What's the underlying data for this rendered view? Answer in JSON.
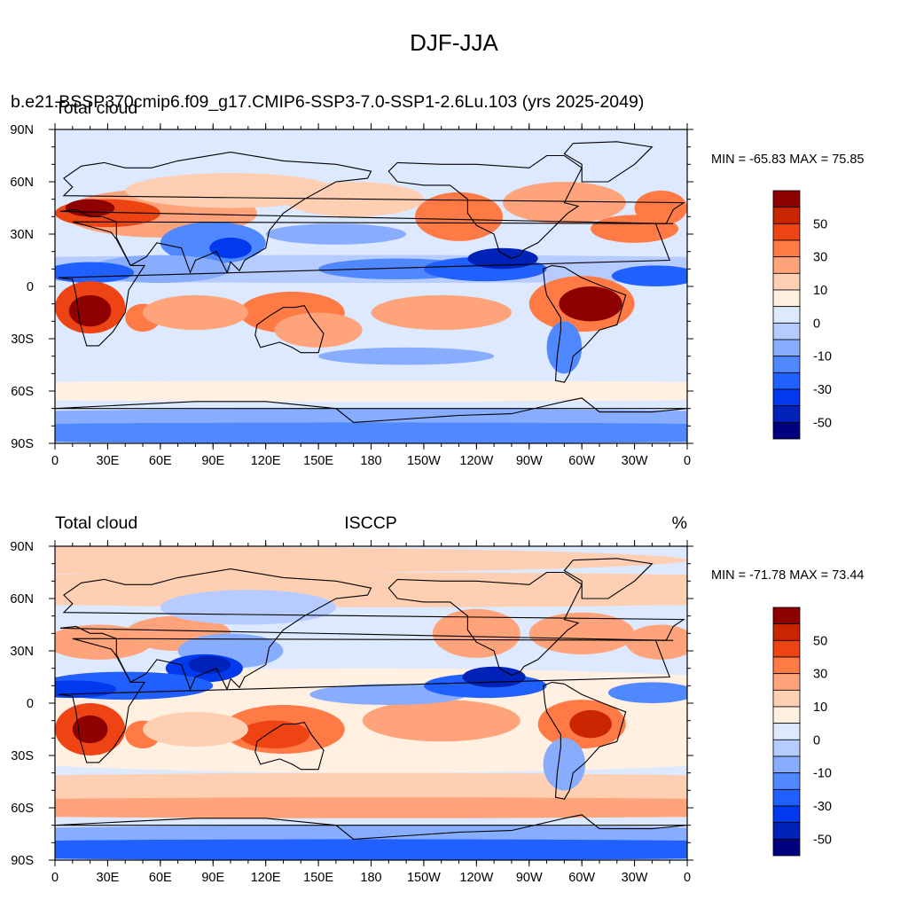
{
  "title": "DJF-JJA",
  "case_name": "b.e21.BSSP370cmip6.f09_g17.CMIP6-SSP3-7.0-SSP1-2.6Lu.103 (yrs 2025-2049)",
  "colors": {
    "land_outline": "#000000",
    "levels": [
      "#00007f",
      "#0022b8",
      "#0039ee",
      "#2060ff",
      "#5088ff",
      "#88adff",
      "#b6cbff",
      "#dde9ff",
      "#fff0e2",
      "#ffcfb4",
      "#ffa37a",
      "#ff7a45",
      "#ee4414",
      "#c92500",
      "#8f0000"
    ]
  },
  "panels": [
    {
      "id": "model",
      "left_label": "Total cloud",
      "center_label": "",
      "right_label": "",
      "min_max": "MIN = -65.83 MAX =  75.85"
    },
    {
      "id": "obs",
      "left_label": "Total cloud",
      "center_label": "ISCCP",
      "right_label": "%",
      "min_max": "MIN = -71.78 MAX =  73.44"
    }
  ],
  "map": {
    "lon_labels": [
      "0",
      "30E",
      "60E",
      "90E",
      "120E",
      "150E",
      "180",
      "150W",
      "120W",
      "90W",
      "60W",
      "30W",
      "0"
    ],
    "lat_labels": [
      "90N",
      "60N",
      "30N",
      "0",
      "30S",
      "60S",
      "90S"
    ]
  },
  "colorbar": {
    "labels": [
      "50",
      "30",
      "10",
      "0",
      "-10",
      "-30",
      "-50"
    ],
    "levels": [
      -60,
      -50,
      -40,
      -30,
      -20,
      -10,
      -5,
      0,
      5,
      10,
      20,
      30,
      40,
      50,
      60
    ]
  }
}
